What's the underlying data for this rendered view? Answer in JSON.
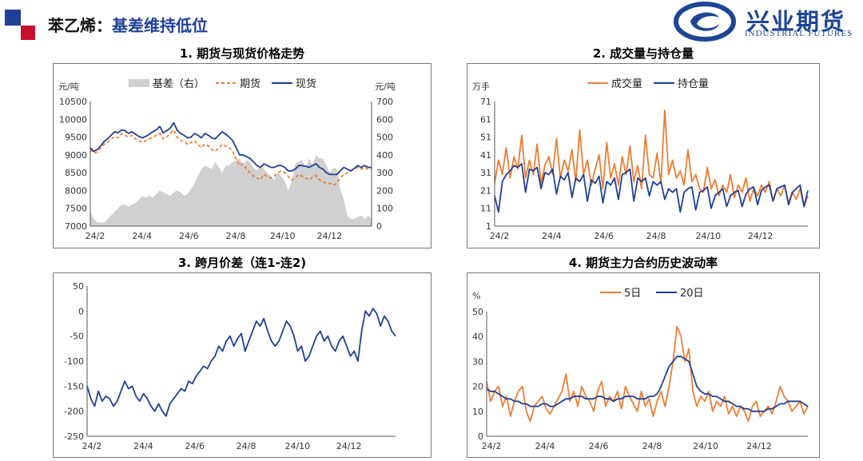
{
  "header": {
    "title_prefix": "苯乙烯：",
    "title_highlight": "基差维持低位",
    "brand_cn": "兴业期货",
    "brand_en": "INDUSTRIAL FUTURES",
    "colors": {
      "red": "#c8102e",
      "blue": "#1f3f98"
    }
  },
  "chart_data": [
    {
      "type": "line",
      "title": "1. 期货与现货价格走势",
      "ylabel_left": "元/吨",
      "ylabel_right": "元/吨",
      "ylim": [
        7000,
        10500
      ],
      "ylim_right": [
        0,
        700
      ],
      "yticks": [
        "10500",
        "10000",
        "9500",
        "9000",
        "8500",
        "8000",
        "7500",
        "7000"
      ],
      "yticks_right": [
        "700",
        "600",
        "500",
        "400",
        "300",
        "200",
        "100",
        "0"
      ],
      "xticks": [
        "24/2",
        "24/4",
        "24/6",
        "24/8",
        "24/10",
        "24/12"
      ],
      "legend": [
        "基差（右）",
        "期货",
        "现货"
      ],
      "legend_position": "top",
      "series": [
        {
          "name": "基差（右）",
          "type": "area",
          "color": "#d0d0d0",
          "values": [
            80,
            40,
            20,
            20,
            20,
            40,
            60,
            80,
            100,
            120,
            120,
            110,
            120,
            130,
            150,
            170,
            160,
            170,
            160,
            180,
            200,
            190,
            180,
            170,
            190,
            200,
            190,
            170,
            180,
            210,
            240,
            280,
            320,
            340,
            330,
            320,
            360,
            330,
            300,
            340,
            340,
            360,
            370,
            380,
            340,
            370,
            360,
            330,
            310,
            340,
            320,
            300,
            280,
            260,
            300,
            280,
            250,
            200,
            250,
            350,
            360,
            370,
            320,
            380,
            340,
            400,
            380,
            380,
            340,
            300,
            330,
            320,
            210,
            150,
            60,
            40,
            40,
            50,
            60,
            40,
            60,
            40
          ]
        },
        {
          "name": "期货",
          "type": "dashed",
          "color": "#ed7d31",
          "values": [
            9150,
            9050,
            9080,
            9200,
            9300,
            9350,
            9450,
            9500,
            9480,
            9600,
            9550,
            9500,
            9550,
            9450,
            9400,
            9350,
            9400,
            9450,
            9500,
            9550,
            9600,
            9450,
            9500,
            9600,
            9700,
            9500,
            9400,
            9380,
            9300,
            9350,
            9400,
            9300,
            9200,
            9300,
            9250,
            9150,
            9100,
            9200,
            9300,
            9250,
            9200,
            9100,
            8900,
            8700,
            8750,
            8600,
            8500,
            8400,
            8350,
            8300,
            8450,
            8400,
            8350,
            8400,
            8500,
            8550,
            8500,
            8400,
            8300,
            8350,
            8450,
            8400,
            8350,
            8300,
            8380,
            8420,
            8300,
            8250,
            8200,
            8200,
            8150,
            8200,
            8350,
            8450,
            8500,
            8550,
            8600,
            8650,
            8600,
            8650,
            8600,
            8600
          ]
        },
        {
          "name": "现货",
          "type": "line",
          "color": "#1f3f98",
          "values": [
            9200,
            9100,
            9150,
            9250,
            9380,
            9450,
            9550,
            9650,
            9620,
            9700,
            9680,
            9600,
            9650,
            9580,
            9520,
            9480,
            9520,
            9580,
            9650,
            9700,
            9800,
            9620,
            9680,
            9750,
            9900,
            9700,
            9600,
            9550,
            9480,
            9500,
            9600,
            9550,
            9480,
            9600,
            9550,
            9480,
            9450,
            9550,
            9650,
            9580,
            9500,
            9400,
            9200,
            9000,
            9000,
            8950,
            8900,
            8800,
            8700,
            8650,
            8750,
            8700,
            8650,
            8650,
            8700,
            8700,
            8650,
            8550,
            8550,
            8600,
            8700,
            8700,
            8680,
            8650,
            8700,
            8750,
            8650,
            8600,
            8500,
            8450,
            8450,
            8450,
            8550,
            8650,
            8600,
            8550,
            8620,
            8700,
            8650,
            8700,
            8650,
            8650
          ]
        }
      ]
    },
    {
      "type": "line",
      "title": "2. 成交量与持仓量",
      "ylabel": "万手",
      "ylim": [
        1,
        71
      ],
      "yticks": [
        "71",
        "61",
        "51",
        "41",
        "31",
        "21",
        "11",
        "1"
      ],
      "xticks": [
        "24/2",
        "24/4",
        "24/6",
        "24/8",
        "24/10",
        "24/12"
      ],
      "legend": [
        "成交量",
        "持仓量"
      ],
      "legend_position": "top",
      "series": [
        {
          "name": "成交量",
          "color": "#ed7d31",
          "values": [
            25,
            38,
            30,
            45,
            28,
            40,
            33,
            52,
            28,
            38,
            30,
            47,
            25,
            35,
            40,
            30,
            50,
            28,
            38,
            32,
            44,
            26,
            55,
            30,
            38,
            24,
            33,
            41,
            22,
            48,
            28,
            36,
            24,
            40,
            30,
            46,
            26,
            35,
            22,
            52,
            30,
            28,
            42,
            25,
            66,
            30,
            38,
            28,
            32,
            24,
            44,
            26,
            30,
            22,
            20,
            34,
            22,
            27,
            18,
            24,
            20,
            30,
            17,
            24,
            20,
            28,
            15,
            22,
            18,
            24,
            20,
            26,
            15,
            22,
            18,
            24,
            14,
            20,
            16,
            22,
            12,
            18
          ]
        },
        {
          "name": "持仓量",
          "color": "#1f3f98",
          "values": [
            18,
            9,
            26,
            30,
            32,
            35,
            34,
            36,
            20,
            33,
            32,
            34,
            22,
            31,
            30,
            33,
            19,
            29,
            27,
            31,
            17,
            28,
            26,
            30,
            15,
            27,
            25,
            29,
            14,
            26,
            24,
            28,
            16,
            30,
            31,
            33,
            15,
            28,
            26,
            28,
            18,
            26,
            24,
            26,
            16,
            22,
            20,
            22,
            9,
            20,
            22,
            23,
            10,
            20,
            21,
            23,
            11,
            18,
            20,
            22,
            12,
            18,
            20,
            21,
            12,
            19,
            22,
            23,
            13,
            21,
            23,
            24,
            15,
            22,
            23,
            24,
            13,
            20,
            22,
            24,
            12,
            21
          ]
        }
      ]
    },
    {
      "type": "line",
      "title": "3. 跨月价差（连1-连2)",
      "ylim": [
        -250,
        50
      ],
      "yticks": [
        "50",
        "0",
        "-50",
        "-100",
        "-150",
        "-200",
        "-250"
      ],
      "xticks": [
        "24/2",
        "24/4",
        "24/6",
        "24/8",
        "24/10",
        "24/12"
      ],
      "series": [
        {
          "name": "跨月价差",
          "color": "#1f3f98",
          "values": [
            -150,
            -175,
            -190,
            -160,
            -180,
            -170,
            -175,
            -190,
            -180,
            -160,
            -140,
            -155,
            -150,
            -170,
            -180,
            -165,
            -175,
            -190,
            -200,
            -185,
            -200,
            -210,
            -185,
            -175,
            -165,
            -155,
            -160,
            -140,
            -145,
            -130,
            -120,
            -110,
            -115,
            -100,
            -90,
            -70,
            -80,
            -60,
            -50,
            -70,
            -55,
            -45,
            -80,
            -60,
            -40,
            -20,
            -30,
            -15,
            -40,
            -60,
            -70,
            -60,
            -40,
            -20,
            -30,
            -50,
            -80,
            -70,
            -100,
            -90,
            -70,
            -50,
            -40,
            -60,
            -50,
            -70,
            -80,
            -60,
            -50,
            -70,
            -90,
            -80,
            -100,
            -40,
            0,
            -10,
            5,
            -5,
            -30,
            -10,
            -20,
            -40,
            -50
          ]
        }
      ]
    },
    {
      "type": "line",
      "title": "4. 期货主力合约历史波动率",
      "ylabel": "%",
      "ylim": [
        0,
        50
      ],
      "yticks": [
        "50",
        "40",
        "30",
        "20",
        "10",
        "0"
      ],
      "xticks": [
        "24/2",
        "24/4",
        "24/6",
        "24/8",
        "24/10",
        "24/12"
      ],
      "legend": [
        "5日",
        "20日"
      ],
      "legend_position": "top",
      "series": [
        {
          "name": "5日",
          "color": "#ed7d31",
          "values": [
            22,
            14,
            18,
            20,
            12,
            16,
            8,
            14,
            18,
            20,
            10,
            6,
            12,
            14,
            16,
            11,
            9,
            12,
            15,
            18,
            25,
            14,
            18,
            12,
            20,
            16,
            14,
            10,
            18,
            22,
            12,
            16,
            14,
            18,
            11,
            20,
            16,
            13,
            10,
            18,
            12,
            15,
            8,
            14,
            18,
            12,
            20,
            30,
            44,
            40,
            30,
            35,
            18,
            12,
            16,
            14,
            18,
            10,
            14,
            12,
            16,
            9,
            12,
            8,
            12,
            10,
            6,
            12,
            14,
            8,
            10,
            12,
            9,
            14,
            20,
            16,
            14,
            10,
            12,
            14,
            9,
            12
          ]
        },
        {
          "name": "20日",
          "color": "#1f3f98",
          "values": [
            19,
            18,
            18,
            17,
            16,
            15,
            15,
            14,
            14,
            13,
            13,
            12,
            12,
            12,
            13,
            13,
            12,
            12,
            13,
            14,
            15,
            15,
            16,
            16,
            16,
            15,
            15,
            15,
            16,
            16,
            15,
            15,
            14,
            15,
            15,
            16,
            16,
            16,
            15,
            15,
            15,
            16,
            16,
            17,
            20,
            24,
            28,
            30,
            32,
            32,
            31,
            30,
            25,
            20,
            18,
            17,
            17,
            16,
            16,
            15,
            14,
            14,
            13,
            12,
            12,
            11,
            11,
            10,
            10,
            10,
            10,
            11,
            11,
            12,
            13,
            13,
            14,
            14,
            14,
            14,
            13,
            12
          ]
        }
      ]
    }
  ]
}
